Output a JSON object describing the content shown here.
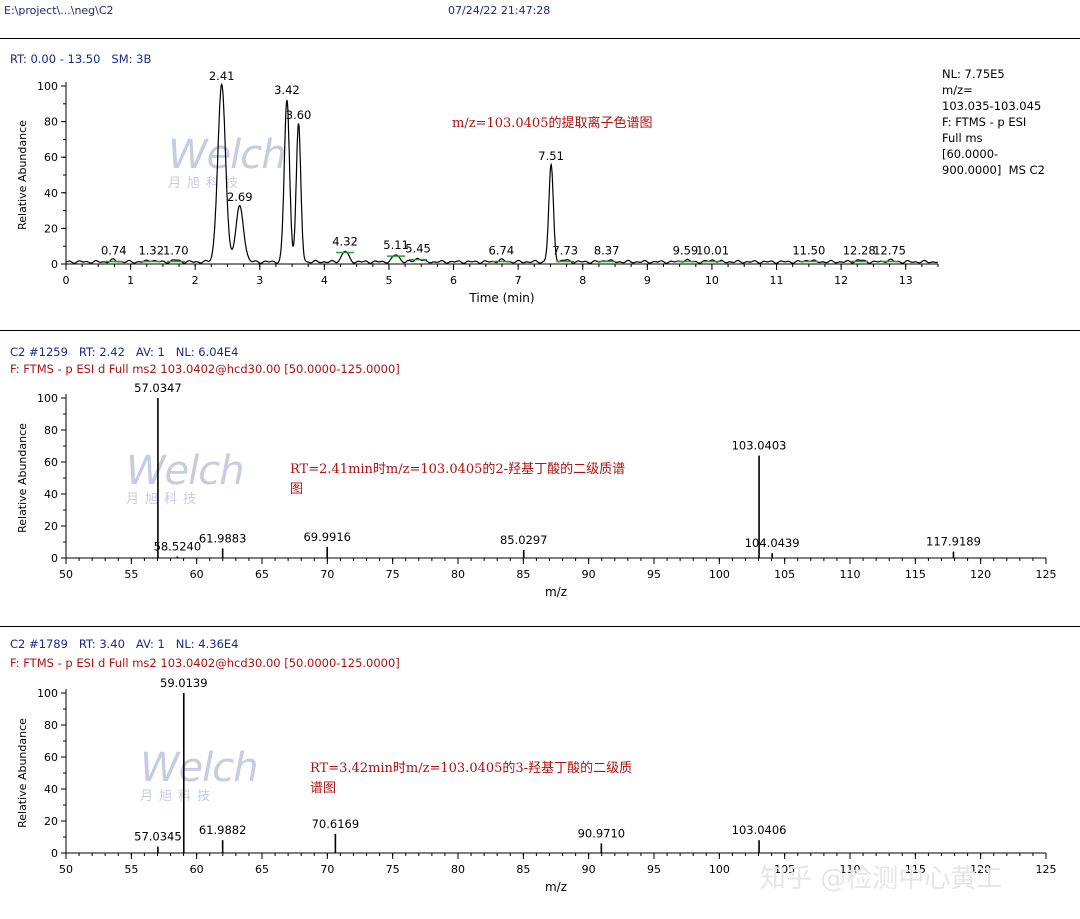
{
  "header": {
    "path": "E:\\project\\...\\neg\\C2",
    "datetime": "07/24/22 21:47:28"
  },
  "panel1": {
    "info": "RT: 0.00 - 13.50   SM: 3B",
    "nl_lines": [
      "NL: 7.75E5",
      "m/z=",
      "103.035-103.045",
      "F: FTMS - p ESI",
      "Full ms",
      "[60.0000-",
      "900.0000]  MS C2"
    ],
    "annotation": "m/z=103.0405的提取离子色谱图"
  },
  "panel2": {
    "line1": "C2 #1259   RT: 2.42   AV: 1   NL: 6.04E4",
    "line2": "F: FTMS - p ESI d Full ms2 103.0402@hcd30.00 [50.0000-125.0000]",
    "annotation_l1": "RT=2.41min时m/z=103.0405的2-羟基丁酸的二级质谱",
    "annotation_l2": "图"
  },
  "panel3": {
    "line1": "C2 #1789   RT: 3.40   AV: 1   NL: 4.36E4",
    "line2": "F: FTMS - p ESI d Full ms2 103.0402@hcd30.00 [50.0000-125.0000]",
    "annotation_l1": "RT=3.42min时m/z=103.0405的3-羟基丁酸的二级质",
    "annotation_l2": "谱图"
  },
  "watermark": {
    "brand": "Welch",
    "brand_cn": "月旭科技",
    "footer": "知乎 @检测中心黄工"
  },
  "chart_data": [
    {
      "type": "line",
      "xlabel": "Time (min)",
      "ylabel": "Relative Abundance",
      "xlim": [
        0,
        13.5
      ],
      "ylim": [
        0,
        100
      ],
      "xticks": [
        0,
        1,
        2,
        3,
        4,
        5,
        6,
        7,
        8,
        9,
        10,
        11,
        12,
        13
      ],
      "yticks": [
        0,
        20,
        40,
        60,
        80,
        100
      ],
      "peaks": [
        {
          "x": 0.74,
          "y": 2,
          "label": "0.74"
        },
        {
          "x": 1.32,
          "y": 2,
          "label": "1.32"
        },
        {
          "x": 1.7,
          "y": 2,
          "label": "1.70"
        },
        {
          "x": 2.41,
          "y": 100,
          "label": "2.41"
        },
        {
          "x": 2.69,
          "y": 32,
          "label": "2.69"
        },
        {
          "x": 3.42,
          "y": 92,
          "label": "3.42"
        },
        {
          "x": 3.6,
          "y": 78,
          "label": "3.60"
        },
        {
          "x": 4.32,
          "y": 7,
          "label": "4.32"
        },
        {
          "x": 5.11,
          "y": 5,
          "label": "5.11"
        },
        {
          "x": 5.45,
          "y": 3,
          "label": "5.45"
        },
        {
          "x": 6.74,
          "y": 2,
          "label": "6.74"
        },
        {
          "x": 7.51,
          "y": 55,
          "label": "7.51"
        },
        {
          "x": 7.73,
          "y": 2,
          "label": "7.73"
        },
        {
          "x": 8.37,
          "y": 2,
          "label": "8.37"
        },
        {
          "x": 9.59,
          "y": 2,
          "label": "9.59"
        },
        {
          "x": 10.01,
          "y": 2,
          "label": "10.01"
        },
        {
          "x": 11.5,
          "y": 2,
          "label": "11.50"
        },
        {
          "x": 12.28,
          "y": 2,
          "label": "12.28"
        },
        {
          "x": 12.75,
          "y": 2,
          "label": "12.75"
        }
      ]
    },
    {
      "type": "bar",
      "xlabel": "m/z",
      "ylabel": "Relative Abundance",
      "xlim": [
        50,
        125
      ],
      "ylim": [
        0,
        100
      ],
      "xticks": [
        50,
        55,
        60,
        65,
        70,
        75,
        80,
        85,
        90,
        95,
        100,
        105,
        110,
        115,
        120,
        125
      ],
      "yticks": [
        0,
        20,
        40,
        60,
        80,
        100
      ],
      "peaks": [
        {
          "x": 57.0347,
          "y": 100,
          "label": "57.0347"
        },
        {
          "x": 58.524,
          "y": 1,
          "label": "58.5240"
        },
        {
          "x": 61.9883,
          "y": 6,
          "label": "61.9883"
        },
        {
          "x": 69.9916,
          "y": 7,
          "label": "69.9916"
        },
        {
          "x": 85.0297,
          "y": 5,
          "label": "85.0297"
        },
        {
          "x": 103.0403,
          "y": 64,
          "label": "103.0403"
        },
        {
          "x": 104.0439,
          "y": 3,
          "label": "104.0439"
        },
        {
          "x": 117.9189,
          "y": 4,
          "label": "117.9189"
        }
      ]
    },
    {
      "type": "bar",
      "xlabel": "m/z",
      "ylabel": "Relative Abundance",
      "xlim": [
        50,
        125
      ],
      "ylim": [
        0,
        100
      ],
      "xticks": [
        50,
        55,
        60,
        65,
        70,
        75,
        80,
        85,
        90,
        95,
        100,
        105,
        110,
        115,
        120,
        125
      ],
      "yticks": [
        0,
        20,
        40,
        60,
        80,
        100
      ],
      "peaks": [
        {
          "x": 57.0345,
          "y": 4,
          "label": "57.0345"
        },
        {
          "x": 59.0139,
          "y": 100,
          "label": "59.0139"
        },
        {
          "x": 61.9882,
          "y": 8,
          "label": "61.9882"
        },
        {
          "x": 70.6169,
          "y": 12,
          "label": "70.6169"
        },
        {
          "x": 90.971,
          "y": 6,
          "label": "90.9710"
        },
        {
          "x": 103.0406,
          "y": 8,
          "label": "103.0406"
        }
      ]
    }
  ]
}
